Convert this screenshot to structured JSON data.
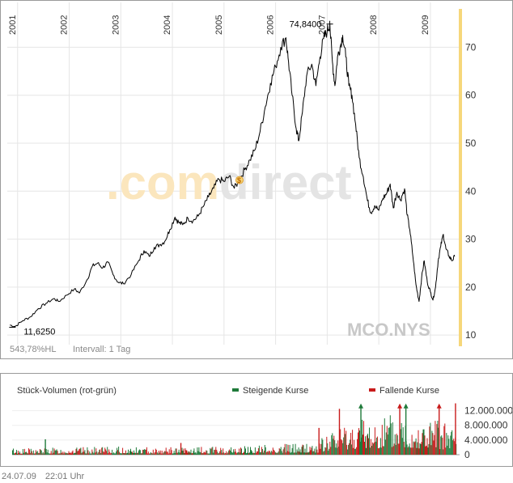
{
  "chart_data": [
    {
      "type": "line",
      "symbol": "MCO.NYS",
      "watermark": ".comdirect",
      "x_ticks": [
        "2001",
        "2002",
        "2003",
        "2004",
        "2005",
        "2006",
        "2007",
        "2008",
        "2009"
      ],
      "y_ticks": [
        10,
        20,
        30,
        40,
        50,
        60,
        70
      ],
      "ylim": [
        8,
        78
      ],
      "xlim": [
        2000.8,
        2009.55
      ],
      "grid": true,
      "axis_position": "right",
      "annotations": {
        "high_label": "74,8400",
        "high": {
          "x": 2007.05,
          "y": 74.84
        },
        "low_label": "11,6250",
        "low": {
          "x": 2000.9,
          "y": 11.625
        },
        "event_marker": {
          "x": 2005.3,
          "y": 42.3,
          "symbol": "$"
        }
      },
      "footer_left": "543,78%HL",
      "footer_interval": "Intervall: 1 Tag",
      "series": [
        {
          "values": [
            [
              2000.85,
              12.1
            ],
            [
              2000.95,
              11.8
            ],
            [
              2001.1,
              13.0
            ],
            [
              2001.25,
              13.8
            ],
            [
              2001.4,
              15.5
            ],
            [
              2001.55,
              16.6
            ],
            [
              2001.7,
              17.6
            ],
            [
              2001.8,
              17.0
            ],
            [
              2001.95,
              18.3
            ],
            [
              2002.1,
              19.6
            ],
            [
              2002.2,
              18.8
            ],
            [
              2002.35,
              21.6
            ],
            [
              2002.45,
              24.4
            ],
            [
              2002.55,
              25.0
            ],
            [
              2002.65,
              24.0
            ],
            [
              2002.75,
              25.2
            ],
            [
              2002.85,
              22.6
            ],
            [
              2002.95,
              21.0
            ],
            [
              2003.05,
              20.7
            ],
            [
              2003.2,
              22.6
            ],
            [
              2003.35,
              25.6
            ],
            [
              2003.45,
              27.6
            ],
            [
              2003.55,
              26.4
            ],
            [
              2003.65,
              28.3
            ],
            [
              2003.75,
              28.8
            ],
            [
              2003.85,
              29.5
            ],
            [
              2003.95,
              32.0
            ],
            [
              2004.05,
              34.6
            ],
            [
              2004.12,
              33.5
            ],
            [
              2004.2,
              33.0
            ],
            [
              2004.3,
              34.4
            ],
            [
              2004.4,
              33.8
            ],
            [
              2004.5,
              34.8
            ],
            [
              2004.6,
              36.8
            ],
            [
              2004.7,
              38.8
            ],
            [
              2004.8,
              40.6
            ],
            [
              2004.9,
              42.5
            ],
            [
              2005.0,
              42.0
            ],
            [
              2005.1,
              43.1
            ],
            [
              2005.2,
              40.6
            ],
            [
              2005.3,
              42.4
            ],
            [
              2005.4,
              44.5
            ],
            [
              2005.5,
              46.5
            ],
            [
              2005.6,
              48.6
            ],
            [
              2005.7,
              52.5
            ],
            [
              2005.8,
              57.6
            ],
            [
              2005.9,
              62.5
            ],
            [
              2006.0,
              66.0
            ],
            [
              2006.1,
              70.0
            ],
            [
              2006.2,
              72.0
            ],
            [
              2006.25,
              67.0
            ],
            [
              2006.32,
              60.0
            ],
            [
              2006.4,
              53.0
            ],
            [
              2006.45,
              50.5
            ],
            [
              2006.52,
              56.5
            ],
            [
              2006.6,
              64.0
            ],
            [
              2006.7,
              66.5
            ],
            [
              2006.78,
              62.0
            ],
            [
              2006.86,
              68.0
            ],
            [
              2006.93,
              71.8
            ],
            [
              2007.0,
              73.4
            ],
            [
              2007.05,
              74.84
            ],
            [
              2007.1,
              67.0
            ],
            [
              2007.15,
              62.0
            ],
            [
              2007.2,
              68.0
            ],
            [
              2007.25,
              70.0
            ],
            [
              2007.3,
              72.5
            ],
            [
              2007.36,
              68.0
            ],
            [
              2007.42,
              62.0
            ],
            [
              2007.48,
              60.0
            ],
            [
              2007.55,
              54.0
            ],
            [
              2007.62,
              47.0
            ],
            [
              2007.7,
              43.0
            ],
            [
              2007.78,
              38.0
            ],
            [
              2007.85,
              35.5
            ],
            [
              2007.92,
              37.0
            ],
            [
              2008.0,
              36.0
            ],
            [
              2008.08,
              38.5
            ],
            [
              2008.15,
              39.5
            ],
            [
              2008.22,
              41.5
            ],
            [
              2008.28,
              36.5
            ],
            [
              2008.35,
              39.8
            ],
            [
              2008.42,
              38.2
            ],
            [
              2008.5,
              40.5
            ],
            [
              2008.55,
              35.0
            ],
            [
              2008.6,
              32.0
            ],
            [
              2008.66,
              26.5
            ],
            [
              2008.72,
              20.5
            ],
            [
              2008.78,
              17.0
            ],
            [
              2008.83,
              22.0
            ],
            [
              2008.88,
              25.5
            ],
            [
              2008.94,
              21.0
            ],
            [
              2009.0,
              19.0
            ],
            [
              2009.05,
              17.3
            ],
            [
              2009.1,
              20.0
            ],
            [
              2009.15,
              25.5
            ],
            [
              2009.2,
              28.5
            ],
            [
              2009.25,
              31.0
            ],
            [
              2009.3,
              28.0
            ],
            [
              2009.36,
              26.5
            ],
            [
              2009.42,
              25.5
            ],
            [
              2009.47,
              26.4
            ]
          ]
        }
      ]
    },
    {
      "type": "bar",
      "title": "Stück-Volumen (rot-grün)",
      "legend": [
        {
          "label": "Steigende Kurse",
          "color": "#1f7a3a"
        },
        {
          "label": "Fallende Kurse",
          "color": "#c81b1b"
        }
      ],
      "y_ticks": [
        {
          "value": 12000000,
          "label": "12.000.000"
        },
        {
          "value": 8000000,
          "label": "8.000.000"
        },
        {
          "value": 4000000,
          "label": "4.000.000"
        },
        {
          "value": 0,
          "label": "0"
        }
      ],
      "ylim": [
        0,
        15000000
      ],
      "xlim": [
        2000.8,
        2009.55
      ],
      "volume_profile": [
        [
          2000.8,
          900000
        ],
        [
          2001.0,
          800000
        ],
        [
          2002.0,
          900000
        ],
        [
          2003.0,
          1000000
        ],
        [
          2004.0,
          900000
        ],
        [
          2005.0,
          1000000
        ],
        [
          2006.0,
          1400000
        ],
        [
          2006.8,
          1600000
        ],
        [
          2007.0,
          3000000
        ],
        [
          2007.5,
          4500000
        ],
        [
          2008.0,
          5000000
        ],
        [
          2008.5,
          5200000
        ],
        [
          2009.0,
          4500000
        ],
        [
          2009.5,
          3800000
        ]
      ],
      "spikes": [
        {
          "x": 2001.45,
          "value": 4200000,
          "dir": "up"
        },
        {
          "x": 2004.1,
          "value": 3200000,
          "dir": "down"
        },
        {
          "x": 2006.8,
          "value": 7300000,
          "dir": "down"
        },
        {
          "x": 2007.2,
          "value": 12500000,
          "dir": "down"
        },
        {
          "x": 2007.62,
          "value": 13500000,
          "dir": "up",
          "arrow": true
        },
        {
          "x": 2008.38,
          "value": 13500000,
          "dir": "down",
          "arrow": true
        },
        {
          "x": 2008.5,
          "value": 13500000,
          "dir": "up",
          "arrow": true
        },
        {
          "x": 2009.15,
          "value": 13500000,
          "dir": "down",
          "arrow": true
        },
        {
          "x": 2009.47,
          "value": 14000000,
          "dir": "down"
        }
      ]
    }
  ],
  "footer": {
    "date": "24.07.09",
    "time": "22:01 Uhr"
  },
  "colors": {
    "line": "#000000",
    "grid": "#e6e6e6",
    "axis_text": "#333333",
    "highlight_band": "#f6d77a",
    "watermark_orange": "#fbe6bd",
    "watermark_gray": "#e4e4e4",
    "symbol_text": "#c8c8c8",
    "rising": "#1f7a3a",
    "falling": "#c81b1b"
  }
}
